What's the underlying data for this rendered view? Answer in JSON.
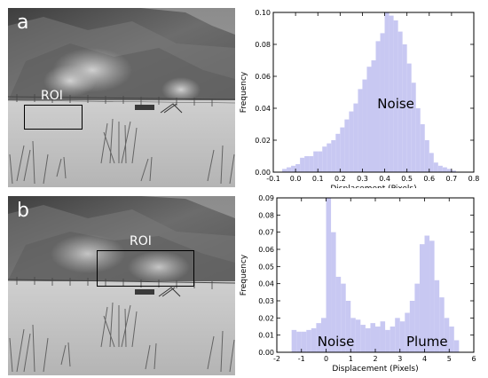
{
  "panels": [
    {
      "letter": "a",
      "roi_label": "ROI"
    },
    {
      "letter": "b",
      "roi_label": "ROI"
    }
  ],
  "chart_data": [
    {
      "type": "bar",
      "chart_style": "histogram",
      "bar_color": "#c8c8f2",
      "xlabel": "Displacement (Pixels)",
      "ylabel": "Frequency",
      "xlim": [
        -0.1,
        0.8
      ],
      "ylim": [
        0,
        0.1
      ],
      "xticks": [
        "-0.1",
        "0.0",
        "0.1",
        "0.2",
        "0.3",
        "0.4",
        "0.5",
        "0.6",
        "0.7",
        "0.8"
      ],
      "yticks": [
        "0.00",
        "0.02",
        "0.04",
        "0.06",
        "0.08",
        "0.10"
      ],
      "bin_width": 0.02,
      "bins_start": [
        -0.06,
        -0.04,
        -0.02,
        0.0,
        0.02,
        0.04,
        0.06,
        0.08,
        0.1,
        0.12,
        0.14,
        0.16,
        0.18,
        0.2,
        0.22,
        0.24,
        0.26,
        0.28,
        0.3,
        0.32,
        0.34,
        0.36,
        0.38,
        0.4,
        0.42,
        0.44,
        0.46,
        0.48,
        0.5,
        0.52,
        0.54,
        0.56,
        0.58,
        0.6,
        0.62,
        0.64,
        0.66,
        0.68,
        0.7
      ],
      "values": [
        0.002,
        0.003,
        0.004,
        0.005,
        0.009,
        0.01,
        0.01,
        0.013,
        0.013,
        0.016,
        0.018,
        0.02,
        0.024,
        0.028,
        0.033,
        0.038,
        0.043,
        0.052,
        0.058,
        0.066,
        0.07,
        0.082,
        0.087,
        0.1,
        0.098,
        0.095,
        0.088,
        0.08,
        0.068,
        0.056,
        0.04,
        0.03,
        0.02,
        0.012,
        0.006,
        0.004,
        0.003,
        0.002,
        0.001
      ],
      "annotations": [
        "Noise"
      ]
    },
    {
      "type": "bar",
      "chart_style": "histogram",
      "bar_color": "#c8c8f2",
      "xlabel": "Displacement (Pixels)",
      "ylabel": "Frequency",
      "xlim": [
        -2,
        6
      ],
      "ylim": [
        0,
        0.09
      ],
      "xticks": [
        "-2",
        "-1",
        "0",
        "1",
        "2",
        "3",
        "4",
        "5",
        "6"
      ],
      "yticks": [
        "0.00",
        "0.01",
        "0.02",
        "0.03",
        "0.04",
        "0.05",
        "0.06",
        "0.07",
        "0.08",
        "0.09"
      ],
      "bin_width": 0.2,
      "bins_start": [
        -1.4,
        -1.2,
        -1.0,
        -0.8,
        -0.6,
        -0.4,
        -0.2,
        0.0,
        0.2,
        0.4,
        0.6,
        0.8,
        1.0,
        1.2,
        1.4,
        1.6,
        1.8,
        2.0,
        2.2,
        2.4,
        2.6,
        2.8,
        3.0,
        3.2,
        3.4,
        3.6,
        3.8,
        4.0,
        4.2,
        4.4,
        4.6,
        4.8,
        5.0,
        5.2
      ],
      "values": [
        0.013,
        0.012,
        0.012,
        0.013,
        0.014,
        0.017,
        0.02,
        0.09,
        0.07,
        0.044,
        0.04,
        0.03,
        0.02,
        0.019,
        0.016,
        0.014,
        0.017,
        0.015,
        0.018,
        0.013,
        0.015,
        0.02,
        0.018,
        0.023,
        0.03,
        0.04,
        0.063,
        0.068,
        0.065,
        0.042,
        0.032,
        0.02,
        0.015,
        0.007
      ],
      "annotations": [
        "Noise",
        "Plume"
      ]
    }
  ]
}
